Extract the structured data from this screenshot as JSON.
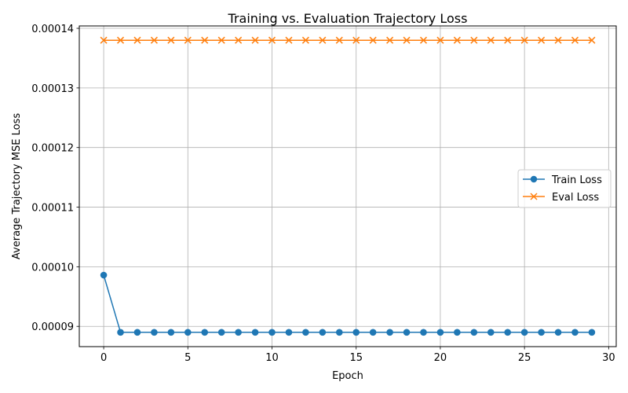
{
  "chart_data": {
    "type": "line",
    "title": "Training vs. Evaluation Trajectory Loss",
    "xlabel": "Epoch",
    "ylabel": "Average Trajectory MSE Loss",
    "xlim": [
      -1.45,
      30.45
    ],
    "ylim": [
      8.66e-05,
      0.0001404
    ],
    "x_ticks": [
      0,
      5,
      10,
      15,
      20,
      25,
      30
    ],
    "x_tick_labels": [
      "0",
      "5",
      "10",
      "15",
      "20",
      "25",
      "30"
    ],
    "y_ticks": [
      9e-05,
      0.0001,
      0.00011,
      0.00012,
      0.00013,
      0.00014
    ],
    "y_tick_labels": [
      "0.00009",
      "0.00010",
      "0.00011",
      "0.00012",
      "0.00013",
      "0.00014"
    ],
    "grid": true,
    "legend_position": "center-right",
    "x": [
      0,
      1,
      2,
      3,
      4,
      5,
      6,
      7,
      8,
      9,
      10,
      11,
      12,
      13,
      14,
      15,
      16,
      17,
      18,
      19,
      20,
      21,
      22,
      23,
      24,
      25,
      26,
      27,
      28,
      29
    ],
    "series": [
      {
        "name": "Train Loss",
        "color": "#1f77b4",
        "marker": "circle",
        "values": [
          9.86e-05,
          8.9e-05,
          8.9e-05,
          8.9e-05,
          8.9e-05,
          8.9e-05,
          8.9e-05,
          8.9e-05,
          8.9e-05,
          8.9e-05,
          8.9e-05,
          8.9e-05,
          8.9e-05,
          8.9e-05,
          8.9e-05,
          8.9e-05,
          8.9e-05,
          8.9e-05,
          8.9e-05,
          8.9e-05,
          8.9e-05,
          8.9e-05,
          8.9e-05,
          8.9e-05,
          8.9e-05,
          8.9e-05,
          8.9e-05,
          8.9e-05,
          8.9e-05,
          8.9e-05
        ]
      },
      {
        "name": "Eval Loss",
        "color": "#ff7f0e",
        "marker": "x",
        "values": [
          0.000138,
          0.000138,
          0.000138,
          0.000138,
          0.000138,
          0.000138,
          0.000138,
          0.000138,
          0.000138,
          0.000138,
          0.000138,
          0.000138,
          0.000138,
          0.000138,
          0.000138,
          0.000138,
          0.000138,
          0.000138,
          0.000138,
          0.000138,
          0.000138,
          0.000138,
          0.000138,
          0.000138,
          0.000138,
          0.000138,
          0.000138,
          0.000138,
          0.000138,
          0.000138
        ]
      }
    ]
  }
}
